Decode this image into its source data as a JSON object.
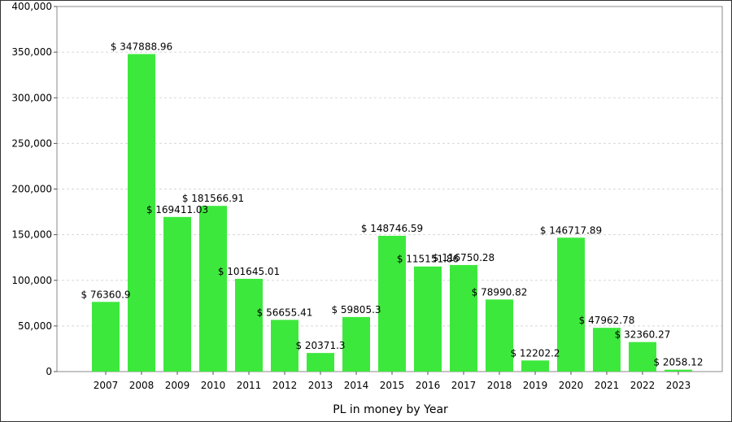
{
  "chart_data": {
    "type": "bar",
    "title": "",
    "xlabel": "PL in money by Year",
    "ylabel": "",
    "categories": [
      "2007",
      "2008",
      "2009",
      "2010",
      "2011",
      "2012",
      "2013",
      "2014",
      "2015",
      "2016",
      "2017",
      "2018",
      "2019",
      "2020",
      "2021",
      "2022",
      "2023"
    ],
    "values": [
      76360.9,
      347888.96,
      169411.03,
      181566.91,
      101645.01,
      56655.41,
      20371.3,
      59805.3,
      148746.59,
      115151.86,
      116750.28,
      78990.82,
      12202.2,
      146717.89,
      47962.78,
      32360.27,
      2058.12
    ],
    "data_labels": [
      "$ 76360.9",
      "$ 347888.96",
      "$ 169411.03",
      "$ 181566.91",
      "$ 101645.01",
      "$ 56655.41",
      "$ 20371.3",
      "$ 59805.3",
      "$ 148746.59",
      "$ 115151.86",
      "$ 116750.28",
      "$ 78990.82",
      "$ 12202.2",
      "$ 146717.89",
      "$ 47962.78",
      "$ 32360.27",
      "$ 2058.12"
    ],
    "ylim": [
      0,
      400000
    ],
    "yticks": [
      0,
      50000,
      100000,
      150000,
      200000,
      250000,
      300000,
      350000,
      400000
    ],
    "ytick_labels": [
      "0",
      "50,000",
      "100,000",
      "150,000",
      "200,000",
      "250,000",
      "300,000",
      "350,000",
      "400,000"
    ],
    "grid": true,
    "bar_color": "#3de83d",
    "legend": "none"
  }
}
